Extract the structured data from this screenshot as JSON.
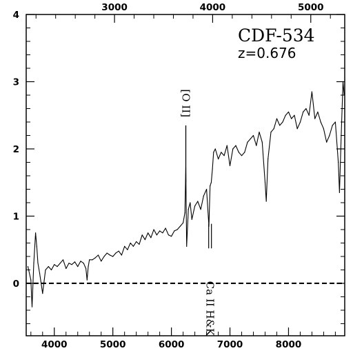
{
  "chart_data": {
    "type": "line",
    "title": "CDF-534",
    "subtitle": "z=0.676",
    "xlabel": "",
    "ylabel": "",
    "xlim": [
      3520,
      8960
    ],
    "ylim": [
      -0.78,
      4.0
    ],
    "top_xlim": [
      2100.0,
      5346.0
    ],
    "x_ticks": [
      4000,
      5000,
      6000,
      7000,
      8000
    ],
    "y_ticks": [
      0,
      1,
      2,
      3,
      4
    ],
    "top_ticks": [
      3000,
      4000,
      5000
    ],
    "grid": false,
    "zero_line": {
      "y": 0,
      "style": "dashed"
    },
    "annotations": [
      {
        "text": "[O II]",
        "x": 6246,
        "y": 2.68,
        "marker_y": [
          1.5,
          2.35
        ]
      },
      {
        "text": "Ca II H&K",
        "x": 6660,
        "y": -0.12,
        "marker_y": [
          0.52,
          0.66
        ]
      }
    ],
    "series": [
      {
        "x": [
          3550,
          3600,
          3620,
          3650,
          3680,
          3700,
          3720,
          3750,
          3800,
          3850,
          3900,
          3950,
          4000,
          4050,
          4100,
          4150,
          4200,
          4250,
          4300,
          4350,
          4400,
          4450,
          4500,
          4540,
          4560,
          4580,
          4600,
          4650,
          4700,
          4750,
          4800,
          4850,
          4900,
          4950,
          5000,
          5050,
          5100,
          5150,
          5200,
          5250,
          5300,
          5350,
          5400,
          5450,
          5500,
          5550,
          5600,
          5650,
          5700,
          5750,
          5800,
          5850,
          5900,
          5950,
          6000,
          6050,
          6100,
          6150,
          6200,
          6230,
          6246,
          6260,
          6290,
          6320,
          6350,
          6400,
          6450,
          6500,
          6550,
          6600,
          6640,
          6660,
          6680,
          6700,
          6720,
          6750,
          6800,
          6850,
          6900,
          6950,
          7000,
          7050,
          7100,
          7150,
          7200,
          7250,
          7300,
          7350,
          7400,
          7450,
          7500,
          7550,
          7600,
          7620,
          7650,
          7700,
          7750,
          7800,
          7850,
          7900,
          7950,
          8000,
          8050,
          8100,
          8150,
          8200,
          8250,
          8300,
          8350,
          8400,
          8450,
          8500,
          8550,
          8600,
          8650,
          8700,
          8750,
          8800,
          8850,
          8870,
          8900,
          8930,
          8950
        ],
        "y": [
          0.25,
          0.05,
          -0.35,
          0.3,
          0.75,
          0.55,
          0.3,
          0.15,
          -0.15,
          0.2,
          0.25,
          0.2,
          0.28,
          0.25,
          0.3,
          0.35,
          0.22,
          0.3,
          0.28,
          0.32,
          0.25,
          0.33,
          0.3,
          0.22,
          0.05,
          0.25,
          0.35,
          0.35,
          0.38,
          0.42,
          0.33,
          0.4,
          0.45,
          0.42,
          0.4,
          0.45,
          0.48,
          0.42,
          0.55,
          0.5,
          0.6,
          0.55,
          0.62,
          0.58,
          0.72,
          0.65,
          0.75,
          0.68,
          0.8,
          0.72,
          0.78,
          0.75,
          0.82,
          0.72,
          0.7,
          0.78,
          0.8,
          0.85,
          0.9,
          1.05,
          1.72,
          0.55,
          1.1,
          1.2,
          0.95,
          1.15,
          1.22,
          1.1,
          1.3,
          1.4,
          0.85,
          1.45,
          1.5,
          1.7,
          1.95,
          2.0,
          1.85,
          1.95,
          1.9,
          2.05,
          1.75,
          2.0,
          2.05,
          1.95,
          1.9,
          1.95,
          2.1,
          2.15,
          2.2,
          2.05,
          2.25,
          2.1,
          1.5,
          1.22,
          1.85,
          2.25,
          2.3,
          2.45,
          2.35,
          2.4,
          2.5,
          2.55,
          2.45,
          2.5,
          2.3,
          2.4,
          2.55,
          2.6,
          2.5,
          2.85,
          2.45,
          2.55,
          2.4,
          2.3,
          2.1,
          2.2,
          2.35,
          2.4,
          1.8,
          1.35,
          2.2,
          3.0,
          2.8
        ]
      }
    ]
  }
}
